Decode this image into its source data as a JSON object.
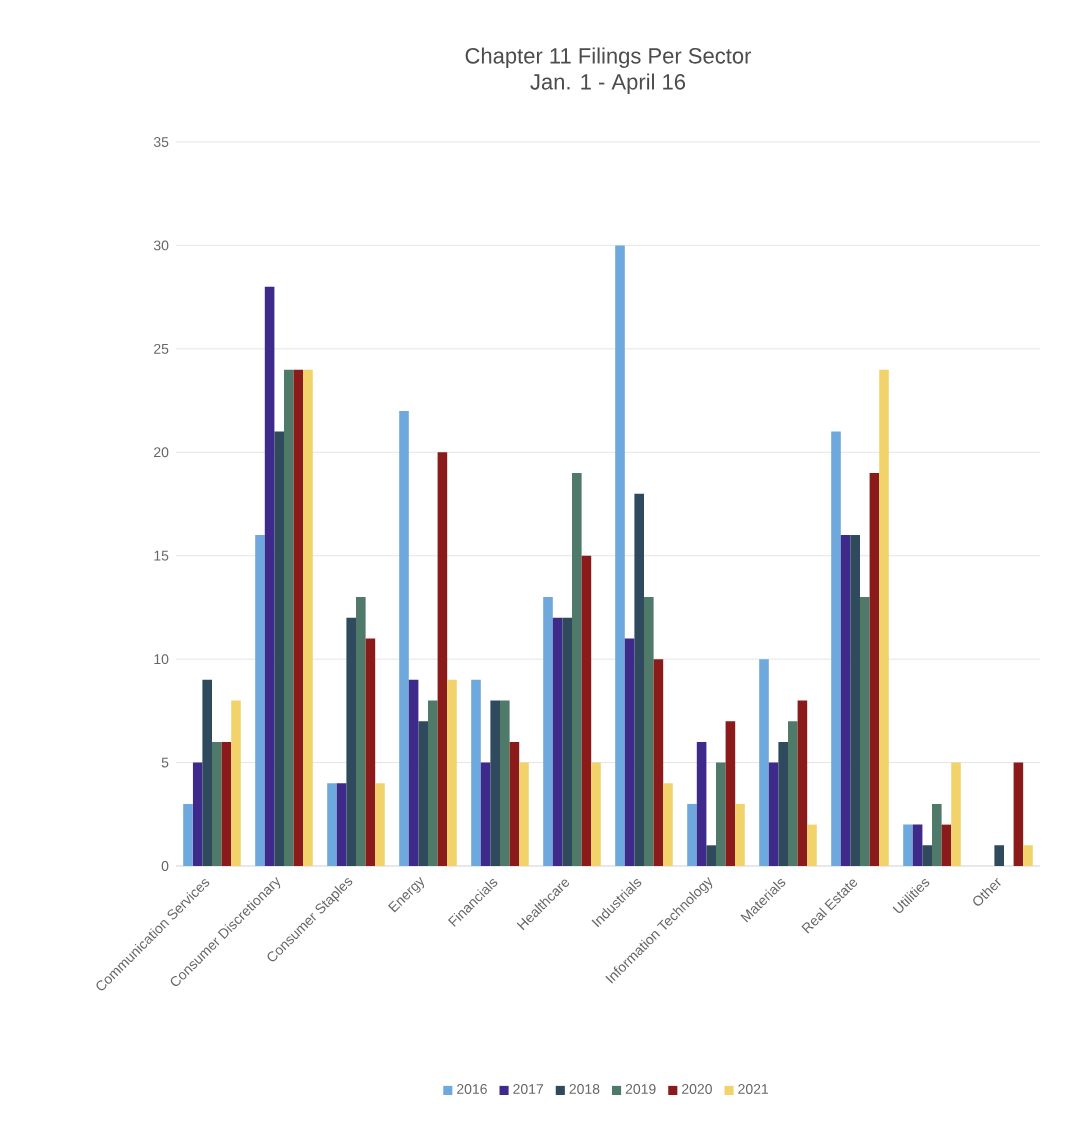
{
  "chart_data": {
    "type": "bar",
    "title": "Chapter 11 Filings Per Sector",
    "subtitle": "Jan. 1 - April 16",
    "categories": [
      "Communication Services",
      "Consumer Discretionary",
      "Consumer Staples",
      "Energy",
      "Financials",
      "Healthcare",
      "Industrials",
      "Information Technology",
      "Materials",
      "Real Estate",
      "Utilities",
      "Other"
    ],
    "series": [
      {
        "name": "2016",
        "color": "#6fa8dc",
        "values": [
          3,
          16,
          4,
          22,
          9,
          13,
          30,
          3,
          10,
          21,
          2,
          0
        ]
      },
      {
        "name": "2017",
        "color": "#3d2a8a",
        "values": [
          5,
          28,
          4,
          9,
          5,
          12,
          11,
          6,
          5,
          16,
          2,
          0
        ]
      },
      {
        "name": "2018",
        "color": "#2e4a5c",
        "values": [
          9,
          21,
          12,
          7,
          8,
          12,
          18,
          1,
          6,
          16,
          1,
          1
        ]
      },
      {
        "name": "2019",
        "color": "#4f7a6a",
        "values": [
          6,
          24,
          13,
          8,
          8,
          19,
          13,
          5,
          7,
          13,
          3,
          0
        ]
      },
      {
        "name": "2020",
        "color": "#8b1a1a",
        "values": [
          6,
          24,
          11,
          20,
          6,
          15,
          10,
          7,
          8,
          19,
          2,
          5
        ]
      },
      {
        "name": "2021",
        "color": "#f2d36b",
        "values": [
          8,
          24,
          4,
          9,
          5,
          5,
          4,
          3,
          2,
          24,
          5,
          1
        ]
      }
    ],
    "ylim": [
      0,
      35
    ],
    "yticks": [
      0,
      5,
      10,
      15,
      20,
      25,
      30,
      35
    ],
    "grid": "y",
    "legend": "bottom"
  }
}
